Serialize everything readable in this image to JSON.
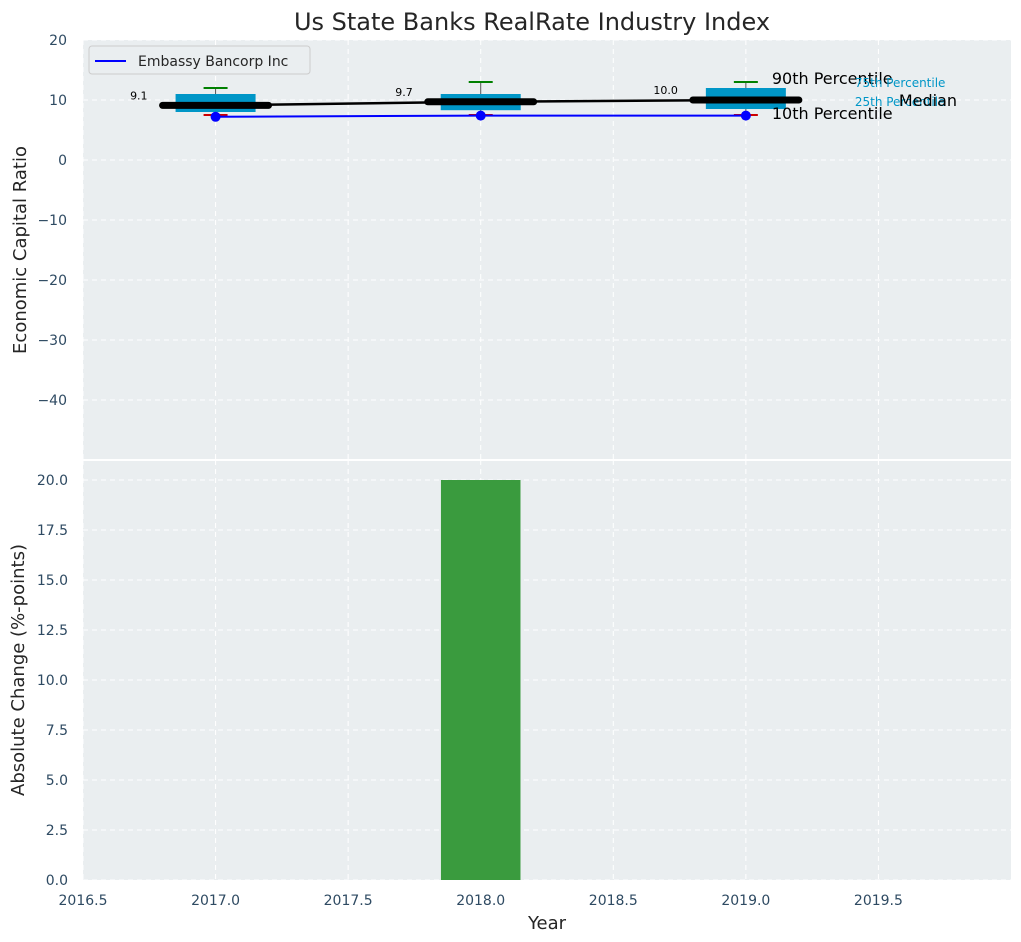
{
  "chart_data": [
    {
      "type": "box",
      "title": "Us State Banks RealRate Industry Index",
      "xlabel": "",
      "ylabel": "Economic Capital Ratio",
      "xlim": [
        2016.5,
        2020.0
      ],
      "ylim": [
        -50,
        20
      ],
      "x_ticks": [],
      "y_ticks": [
        20,
        10,
        0,
        -10,
        -20,
        -30,
        -40
      ],
      "y_tick_labels": [
        "20",
        "10",
        "0",
        "−10",
        "−20",
        "−30",
        "−40"
      ],
      "grid": true,
      "legend": {
        "position": "top-left",
        "entries": [
          "Embassy Bancorp Inc"
        ]
      },
      "boxes": [
        {
          "x": 2017,
          "p10": 7.5,
          "p25": 8.0,
          "median": 9.1,
          "p75": 11.0,
          "p90": 12.0
        },
        {
          "x": 2018,
          "p10": 7.5,
          "p25": 8.3,
          "median": 9.7,
          "p75": 11.0,
          "p90": 13.0
        },
        {
          "x": 2019,
          "p10": 7.5,
          "p25": 8.5,
          "median": 10.0,
          "p75": 12.0,
          "p90": 13.0
        }
      ],
      "median_line": {
        "x": [
          2017,
          2018,
          2019
        ],
        "y": [
          9.1,
          9.7,
          10.0
        ]
      },
      "median_labels": [
        "9.1",
        "9.7",
        "10.0"
      ],
      "series": [
        {
          "name": "Embassy Bancorp Inc",
          "x": [
            2017,
            2018,
            2019
          ],
          "y": [
            7.2,
            7.4,
            7.4
          ]
        }
      ],
      "annotations": {
        "p90": "90th Percentile",
        "p75": "75th Percentile",
        "median": "Median",
        "p25": "25th Percentile",
        "p10": "10th Percentile"
      },
      "colors": {
        "box": "#0096c7",
        "median": "#000000",
        "series": "#0000ff",
        "p90_cap": "#008000",
        "p10_cap": "#cc0000",
        "percentile_text": "#0096c7",
        "panel_bg": "#eaeef0",
        "tick_text": "#2e4a62"
      }
    },
    {
      "type": "bar",
      "title": "",
      "xlabel": "Year",
      "ylabel": "Absolute Change (%-points)",
      "xlim": [
        2016.5,
        2020.0
      ],
      "ylim": [
        0,
        21
      ],
      "x_ticks": [
        2016.5,
        2017.0,
        2017.5,
        2018.0,
        2018.5,
        2019.0,
        2019.5
      ],
      "x_tick_labels": [
        "2016.5",
        "2017.0",
        "2017.5",
        "2018.0",
        "2018.5",
        "2019.0",
        "2019.5"
      ],
      "y_ticks": [
        0,
        2.5,
        5,
        7.5,
        10,
        12.5,
        15,
        17.5,
        20
      ],
      "y_tick_labels": [
        "0.0",
        "2.5",
        "5.0",
        "7.5",
        "10.0",
        "12.5",
        "15.0",
        "17.5",
        "20.0"
      ],
      "grid": true,
      "bars": [
        {
          "x": 2018,
          "value": 20.0
        }
      ],
      "bar_width": 0.3,
      "colors": {
        "bar": "#3a9b3e",
        "panel_bg": "#eaeef0",
        "tick_text": "#2e4a62"
      }
    }
  ]
}
